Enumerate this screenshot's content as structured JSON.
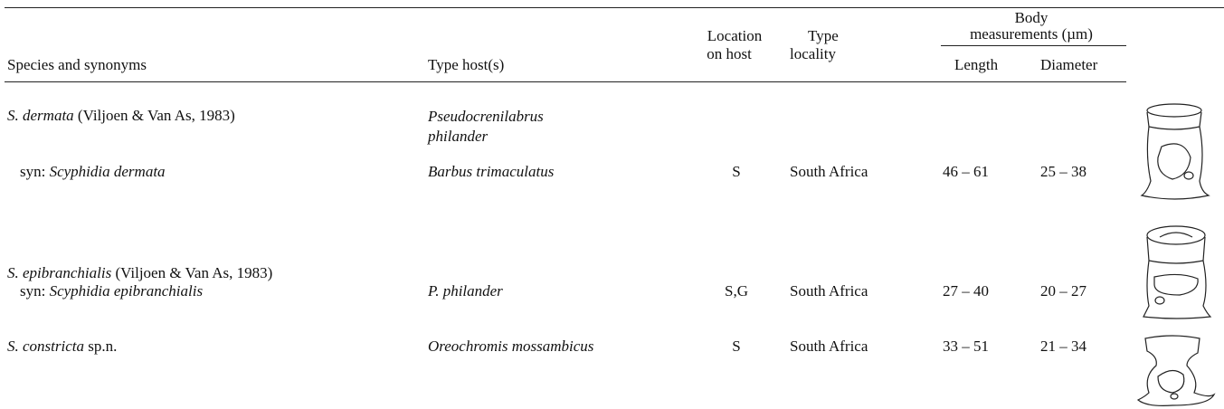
{
  "table": {
    "header": {
      "species": "Species and synonyms",
      "host": "Type host(s)",
      "location": [
        "Location",
        "on host"
      ],
      "locality": [
        "Type",
        "locality"
      ],
      "body": [
        "Body",
        "measurements (µm)"
      ],
      "length": "Length",
      "diameter": "Diameter"
    },
    "rows": [
      {
        "name": "S. dermata",
        "authority": "(Viljoen & Van As, 1983)",
        "syn_label": "syn:",
        "syn_name": "Scyphidia dermata",
        "hosts": [
          "Pseudocrenilabrus philander",
          "Barbus trimaculatus"
        ],
        "location": "S",
        "locality": "South Africa",
        "length": "46 – 61",
        "diameter": "25 – 38"
      },
      {
        "name": "S. epibranchialis",
        "authority": "(Viljoen & Van As, 1983)",
        "syn_label": "syn:",
        "syn_name": "Scyphidia epibranchialis",
        "hosts": [
          "P. philander"
        ],
        "location": "S,G",
        "locality": "South Africa",
        "length": "27 – 40",
        "diameter": "20 – 27"
      },
      {
        "name": "S. constricta",
        "authority": "sp.n.",
        "hosts": [
          "Oreochromis mossambicus"
        ],
        "location": "S",
        "locality": "South Africa",
        "length": "33 – 51",
        "diameter": "21 – 34"
      }
    ]
  }
}
